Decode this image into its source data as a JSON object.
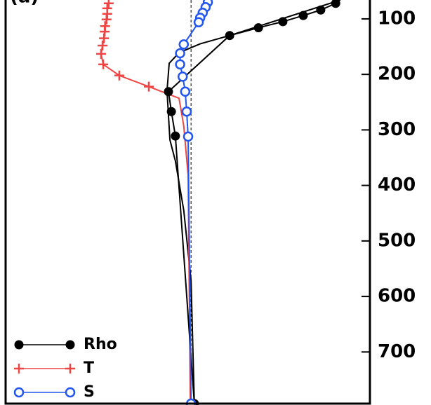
{
  "chart_data": {
    "type": "line",
    "title": "(a)",
    "xlim": [
      0,
      100
    ],
    "ylim": [
      793,
      66
    ],
    "yticks": [
      100,
      200,
      300,
      400,
      500,
      600,
      700
    ],
    "reference_x": 50.9,
    "legend": "lower left",
    "series": [
      {
        "name": "Rho",
        "color": "#000000",
        "marker": "dot",
        "x": [
          90.6,
          86.5,
          81.7,
          76.1,
          69.4,
          61.5,
          44.7,
          45.5,
          46.6,
          51.8
        ],
        "values": [
          72,
          84,
          94,
          105,
          116,
          130,
          231,
          267,
          311,
          793
        ]
      },
      {
        "name": "T",
        "color": "#ee4444",
        "marker": "plus",
        "x": [
          28.3,
          27.9,
          27.9,
          27.7,
          27.3,
          27.2,
          27.0,
          26.6,
          26.2,
          26.8,
          31.2,
          39.3
        ],
        "values": [
          72,
          81,
          91,
          101,
          113,
          123,
          135,
          148,
          163,
          182,
          202,
          222
        ]
      },
      {
        "name": "S",
        "color": "#2255ee",
        "marker": "circle",
        "x": [
          55.5,
          54.9,
          54.1,
          53.4,
          53.0,
          48.9,
          47.9,
          47.9,
          48.6,
          49.3,
          49.7,
          50.1,
          50.9
        ],
        "values": [
          70,
          79,
          89,
          98,
          106,
          146,
          162,
          182,
          204,
          231,
          267,
          312,
          793
        ]
      }
    ],
    "profiles": [
      {
        "color": "#000000",
        "x": [
          91.9,
          61.5,
          53.4,
          47.6,
          44.9,
          44.3,
          45.1,
          46.6,
          48.9,
          50.9,
          51.8
        ],
        "values": [
          66,
          130,
          145,
          161,
          180,
          230,
          318,
          356,
          445,
          571,
          793
        ]
      },
      {
        "color": "#ee4444",
        "x": [
          39.3,
          47.6,
          48.9,
          50.1,
          50.7
        ],
        "values": [
          222,
          243,
          293,
          382,
          793
        ]
      }
    ]
  }
}
